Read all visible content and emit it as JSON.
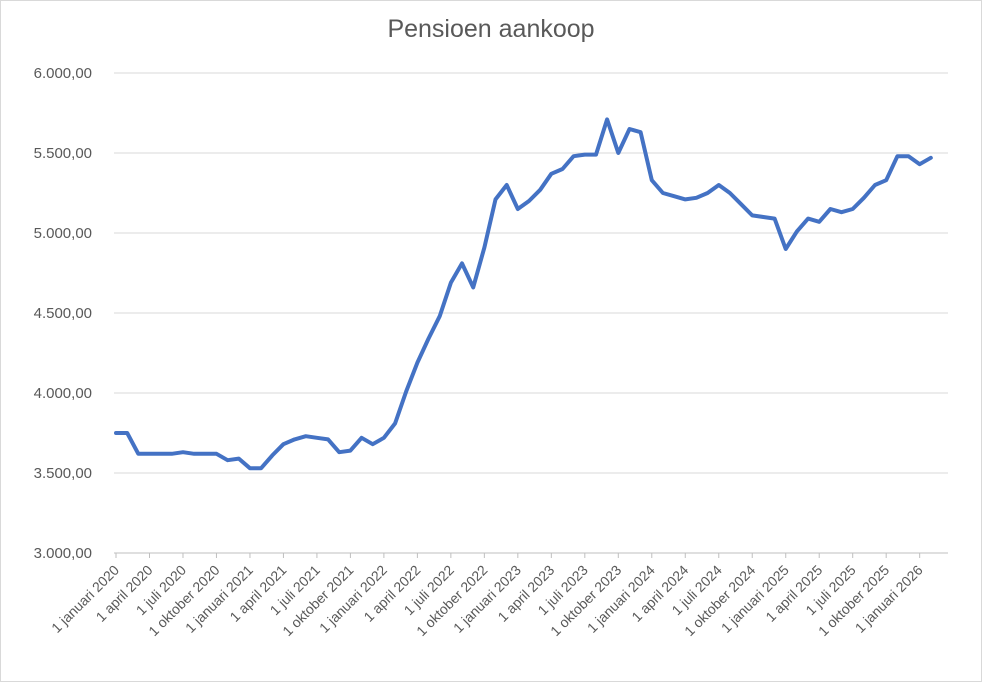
{
  "chart_data": {
    "type": "line",
    "title": "Pensioen aankoop",
    "xlabel": "",
    "ylabel": "",
    "ylim": [
      3000,
      6000
    ],
    "yticks": [
      "3.000,00",
      "3.500,00",
      "4.000,00",
      "4.500,00",
      "5.000,00",
      "5.500,00",
      "6.000,00"
    ],
    "xticks": [
      "1 januari 2020",
      "1 april 2020",
      "1 juli 2020",
      "1 oktober 2020",
      "1 januari 2021",
      "1 april 2021",
      "1 juli 2021",
      "1 oktober 2021",
      "1 januari 2022",
      "1 april 2022",
      "1 juli 2022",
      "1 oktober 2022",
      "1 januari 2023",
      "1 april 2023",
      "1 juli 2023",
      "1 oktober 2023",
      "1 januari 2024",
      "1 april 2024",
      "1 juli 2024",
      "1 oktober 2024",
      "1 januari 2025",
      "1 april 2025",
      "1 juli 2025",
      "1 oktober 2025",
      "1 januari 2026"
    ],
    "grid": true,
    "legend": "none",
    "line_color": "#4472c4",
    "series": [
      {
        "x": [
          "2020-01",
          "2020-02",
          "2020-03",
          "2020-04",
          "2020-05",
          "2020-06",
          "2020-07",
          "2020-08",
          "2020-09",
          "2020-10",
          "2020-11",
          "2020-12",
          "2021-01",
          "2021-02",
          "2021-03",
          "2021-04",
          "2021-05",
          "2021-06",
          "2021-07",
          "2021-08",
          "2021-09",
          "2021-10",
          "2021-11",
          "2021-12",
          "2022-01",
          "2022-02",
          "2022-03",
          "2022-04",
          "2022-05",
          "2022-06",
          "2022-07",
          "2022-08",
          "2022-09",
          "2022-10",
          "2022-11",
          "2022-12",
          "2023-01",
          "2023-02",
          "2023-03",
          "2023-04",
          "2023-05",
          "2023-06",
          "2023-07",
          "2023-08",
          "2023-09",
          "2023-10",
          "2023-11",
          "2023-12",
          "2024-01",
          "2024-02",
          "2024-03",
          "2024-04",
          "2024-05",
          "2024-06",
          "2024-07",
          "2024-08",
          "2024-09",
          "2024-10",
          "2024-11",
          "2024-12",
          "2025-01",
          "2025-02",
          "2025-03",
          "2025-04",
          "2025-05",
          "2025-06",
          "2025-07",
          "2025-08",
          "2025-09",
          "2025-10",
          "2025-11",
          "2025-12",
          "2026-01",
          "2026-02"
        ],
        "values": [
          3750,
          3750,
          3620,
          3620,
          3620,
          3620,
          3630,
          3620,
          3620,
          3620,
          3580,
          3590,
          3530,
          3530,
          3610,
          3680,
          3710,
          3730,
          3720,
          3710,
          3630,
          3640,
          3720,
          3680,
          3720,
          3810,
          4010,
          4190,
          4340,
          4480,
          4690,
          4810,
          4660,
          4910,
          5210,
          5300,
          5150,
          5200,
          5270,
          5370,
          5400,
          5480,
          5490,
          5490,
          5710,
          5500,
          5650,
          5630,
          5330,
          5250,
          5230,
          5210,
          5220,
          5250,
          5300,
          5250,
          5180,
          5110,
          5100,
          5090,
          4900,
          5010,
          5090,
          5070,
          5150,
          5130,
          5150,
          5220,
          5300,
          5330,
          5480,
          5480,
          5430,
          5470
        ]
      }
    ]
  }
}
